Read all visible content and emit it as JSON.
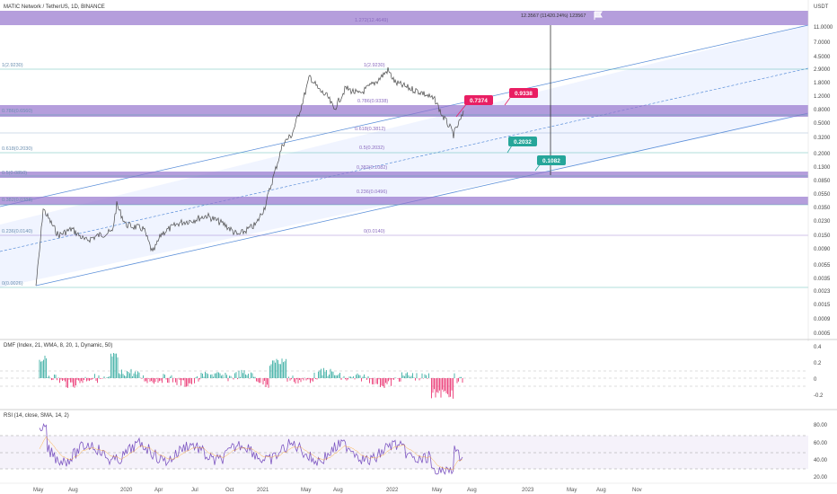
{
  "header": {
    "symbol_title": "MATIC Network / TetherUS, 1D, BINANCE",
    "currency": "USDT"
  },
  "main_axis": {
    "ticks": [
      "11.0000",
      "7.0000",
      "4.5000",
      "2.9000",
      "1.8000",
      "1.2000",
      "0.8000",
      "0.5000",
      "0.3200",
      "0.2000",
      "0.1300",
      "0.0850",
      "0.0550",
      "0.0350",
      "0.0230",
      "0.0150",
      "0.0090",
      "0.0055",
      "0.0035",
      "0.0023",
      "0.0015",
      "0.0009",
      "0.0005"
    ]
  },
  "x_axis": {
    "ticks": [
      "May",
      "Aug",
      "2020",
      "Apr",
      "Jul",
      "Oct",
      "2021",
      "May",
      "Aug",
      "2022",
      "May",
      "Aug",
      "2023",
      "May",
      "Aug",
      "Nov"
    ]
  },
  "fib_left_labels": [
    "1(2.9230)",
    "0.786(0.6560)",
    "0.618(0.2030)",
    "0.5(0.0850)",
    "0.382(0.0388)",
    "0.236(0.0140)",
    "0(0.0026)"
  ],
  "fib_right_labels": [
    "1.272(12.4649)",
    "1(2.9230)",
    "0.786(0.9338)",
    "0.618(0.3812)",
    "0.5(0.2032)",
    "0.382(0.1082)",
    "0.236(0.0496)",
    "0(0.0140)"
  ],
  "callouts": [
    {
      "label": "0.7374",
      "color": "#e91e63"
    },
    {
      "label": "0.9338",
      "color": "#e91e63"
    },
    {
      "label": "0.2032",
      "color": "#26a69a"
    },
    {
      "label": "0.1082",
      "color": "#26a69a"
    }
  ],
  "measure_label": "12.3567 (11420.24%) 123567",
  "dmf": {
    "label": "DMF (Index, 21, WMA, 8, 20, 1, Dynamic, 50)",
    "ticks": [
      "0.4",
      "0.2",
      "0",
      "-0.2"
    ]
  },
  "rsi": {
    "label": "RSI (14, close, SMA, 14, 2)",
    "ticks": [
      "80.00",
      "60.00",
      "40.00",
      "20.00"
    ]
  },
  "colors": {
    "channel": "#2962ff",
    "band": "#9575cd",
    "up": "#26a69a",
    "down": "#ef5350",
    "rsi": "#7e57c2"
  },
  "chart_data": {
    "type": "line",
    "title": "MATIC Network / TetherUS, 1D, BINANCE",
    "scale": "log",
    "ylim": [
      0.0005,
      15
    ],
    "x": [
      "2019-05",
      "2019-08",
      "2020-01",
      "2020-04",
      "2020-07",
      "2020-10",
      "2021-01",
      "2021-05",
      "2021-08",
      "2022-01",
      "2022-05",
      "2022-07"
    ],
    "series": [
      {
        "values": [
          0.0026,
          0.023,
          0.014,
          0.009,
          0.018,
          0.012,
          0.018,
          2.4,
          1.05,
          2.6,
          0.6,
          0.95
        ]
      }
    ],
    "fib_levels": [
      0.0026,
      0.014,
      0.0388,
      0.085,
      0.203,
      0.656,
      2.923
    ],
    "fib_extension_levels": [
      0.014,
      0.0496,
      0.1082,
      0.2032,
      0.3812,
      0.9338,
      2.923,
      12.4649
    ],
    "annotations": [
      "0.7374",
      "0.9338",
      "0.2032",
      "0.1082"
    ],
    "measure": "12.3567 (11420.24%) 123567"
  }
}
